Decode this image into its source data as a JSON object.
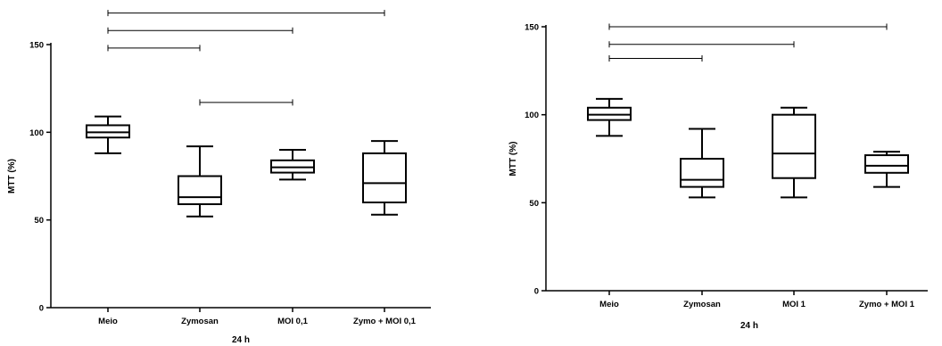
{
  "chart_data": [
    {
      "type": "box",
      "xlabel": "24 h",
      "ylabel": "MTT (%)",
      "ylim": [
        0,
        150
      ],
      "yticks": [
        0,
        50,
        100,
        150
      ],
      "categories": [
        "Meio",
        "Zymosan",
        "MOI 0,1",
        "Zymo + MOI 0,1"
      ],
      "boxes": [
        {
          "min": 88,
          "q1": 97,
          "median": 100,
          "q3": 104,
          "max": 109
        },
        {
          "min": 52,
          "q1": 59,
          "median": 63,
          "q3": 75,
          "max": 92
        },
        {
          "min": 73,
          "q1": 77,
          "median": 80,
          "q3": 84,
          "max": 90
        },
        {
          "min": 53,
          "q1": 60,
          "median": 71,
          "q3": 88,
          "max": 95
        }
      ],
      "comparisons": [
        {
          "from": 0,
          "to": 3,
          "level": 168
        },
        {
          "from": 0,
          "to": 2,
          "level": 158
        },
        {
          "from": 0,
          "to": 1,
          "level": 148
        },
        {
          "from": 1,
          "to": 2,
          "level": 117
        }
      ]
    },
    {
      "type": "box",
      "xlabel": "24 h",
      "ylabel": "MTT (%)",
      "ylim": [
        0,
        150
      ],
      "yticks": [
        0,
        50,
        100,
        150
      ],
      "categories": [
        "Meio",
        "Zymosan",
        "MOI 1",
        "Zymo + MOI 1"
      ],
      "boxes": [
        {
          "min": 88,
          "q1": 97,
          "median": 100,
          "q3": 104,
          "max": 109
        },
        {
          "min": 53,
          "q1": 59,
          "median": 63,
          "q3": 75,
          "max": 92
        },
        {
          "min": 53,
          "q1": 64,
          "median": 78,
          "q3": 100,
          "max": 104
        },
        {
          "min": 59,
          "q1": 67,
          "median": 71,
          "q3": 77,
          "max": 79
        }
      ],
      "comparisons": [
        {
          "from": 0,
          "to": 3,
          "level": 150
        },
        {
          "from": 0,
          "to": 2,
          "level": 140
        },
        {
          "from": 0,
          "to": 1,
          "level": 132
        }
      ]
    }
  ]
}
